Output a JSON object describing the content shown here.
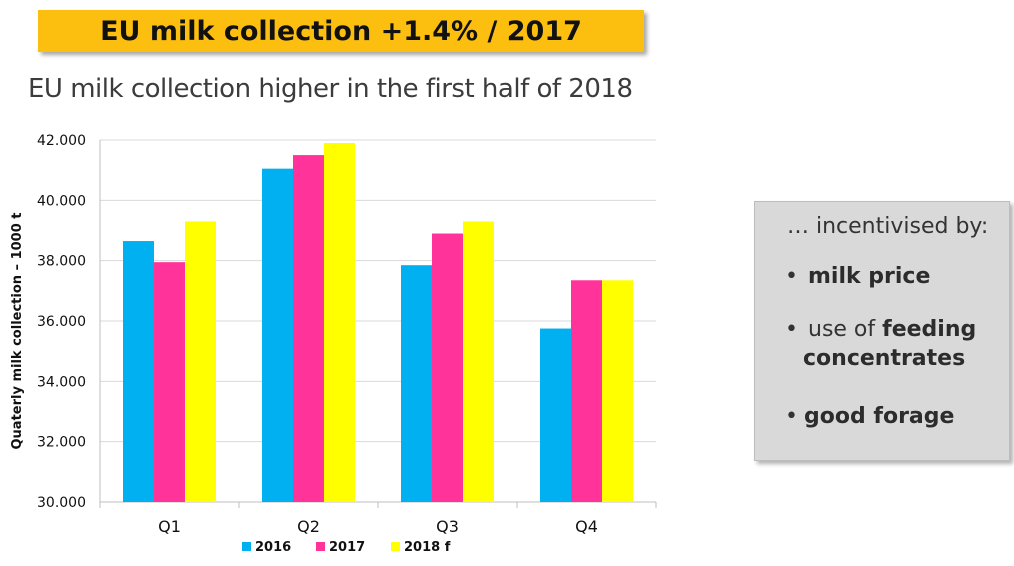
{
  "banner": {
    "title": "EU milk collection +1.4% / 2017"
  },
  "subtitle": "EU milk collection higher in the first half of 2018",
  "sidebox": {
    "heading": "… incentivised by:",
    "item1": {
      "bold": "milk price"
    },
    "item2": {
      "plain": "use of ",
      "bold1": "feeding",
      "bold2": "concentrates"
    },
    "item3": {
      "bold": "good forage"
    }
  },
  "colors": {
    "s2016": "#00b0f0",
    "s2017": "#ff3399",
    "s2018": "#ffff00",
    "banner": "#fcbf0f"
  },
  "chart_data": {
    "type": "bar",
    "ylabel": "Quaterly milk collection – 1000 t",
    "xlabel": "",
    "ylim": [
      30000,
      42000
    ],
    "yticks": [
      "30.000",
      "32.000",
      "34.000",
      "36.000",
      "38.000",
      "40.000",
      "42.000"
    ],
    "categories": [
      "Q1",
      "Q2",
      "Q3",
      "Q4"
    ],
    "series": [
      {
        "name": "2016",
        "values": [
          38650,
          41050,
          37850,
          35750
        ]
      },
      {
        "name": "2017",
        "values": [
          37950,
          41500,
          38900,
          37350
        ]
      },
      {
        "name": "2018 f",
        "values": [
          39300,
          41900,
          39300,
          37350
        ]
      }
    ],
    "grid": true,
    "legend": "bottom"
  }
}
